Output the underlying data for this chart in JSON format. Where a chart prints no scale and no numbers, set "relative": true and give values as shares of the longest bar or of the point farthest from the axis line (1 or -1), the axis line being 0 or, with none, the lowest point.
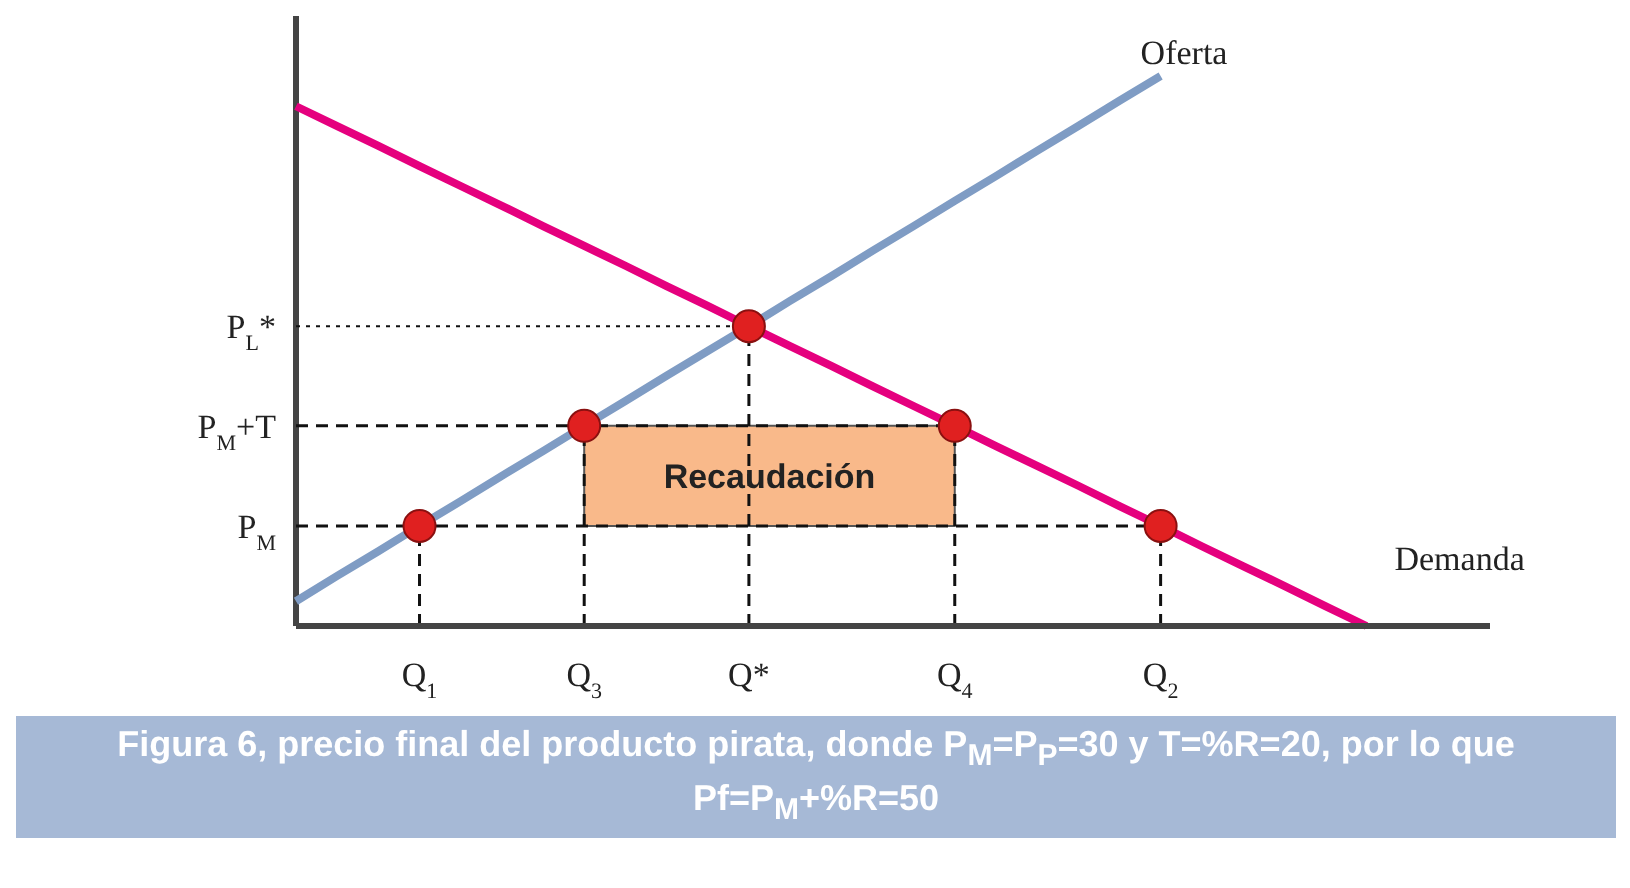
{
  "chart_data": {
    "type": "line",
    "title": "Figura 6, precio final del producto pirata, donde P$_{M}$=P$_{P}$=30 y T=%R=20, por lo que Pf=P$_{M}$+%R=50",
    "relative": true,
    "categories": [
      null,
      null,
      null,
      "Q$_{1}$",
      null,
      null,
      null,
      "Q$_{3}$",
      null,
      null,
      null,
      "Q*",
      null,
      null,
      null,
      null,
      "Q$_{4}$",
      null,
      null,
      null,
      null,
      "Q$_{2}$",
      null,
      null,
      null,
      null,
      null,
      null,
      null,
      null
    ],
    "ref_lines": [
      {
        "axis": "y",
        "value": 0.545,
        "label": "P$_{L}$*",
        "line_style": "dotted",
        "color": "#111111"
      },
      {
        "axis": "y",
        "value": 0.364,
        "label": "P$_{M}$+T",
        "line_style": "dashed",
        "color": "#111111"
      },
      {
        "axis": "y",
        "value": 0.182,
        "label": "P$_{M}$",
        "line_style": "dashed",
        "color": "#111111"
      }
    ],
    "bands": [
      {
        "axis": "y",
        "from": 0.182,
        "to": 0.364,
        "label": "Recaudación",
        "color": "#f9b98a"
      }
    ],
    "grid": false,
    "legend": false,
    "series": [
      {
        "name": "Oferta",
        "color": "#7f9cc4",
        "values": [
          0.045,
          0.091,
          0.136,
          0.182,
          0.227,
          0.273,
          0.318,
          0.364,
          0.409,
          0.455,
          0.5,
          0.545,
          0.591,
          0.636,
          0.682,
          0.727,
          0.773,
          0.818,
          0.864,
          0.909,
          0.955,
          1,
          null,
          null,
          null,
          null,
          null,
          null,
          null,
          null
        ]
      },
      {
        "name": "Demanda",
        "color": "#e5007e",
        "values": [
          0.945,
          0.909,
          0.873,
          0.836,
          0.8,
          0.764,
          0.727,
          0.691,
          0.655,
          0.618,
          0.582,
          0.545,
          0.509,
          0.473,
          0.436,
          0.4,
          0.364,
          0.327,
          0.291,
          0.255,
          0.218,
          0.182,
          0.145,
          0.109,
          0.073,
          0.036,
          0,
          null,
          null,
          null
        ]
      },
      {
        "type": "scatter",
        "color": "#e02020",
        "values": [
          null,
          null,
          null,
          0.182,
          null,
          null,
          null,
          0.364,
          null,
          null,
          null,
          0.545,
          null,
          null,
          null,
          null,
          0.364,
          null,
          null,
          null,
          null,
          0.182,
          null,
          null,
          null,
          null,
          null,
          null,
          null,
          null
        ]
      }
    ]
  }
}
